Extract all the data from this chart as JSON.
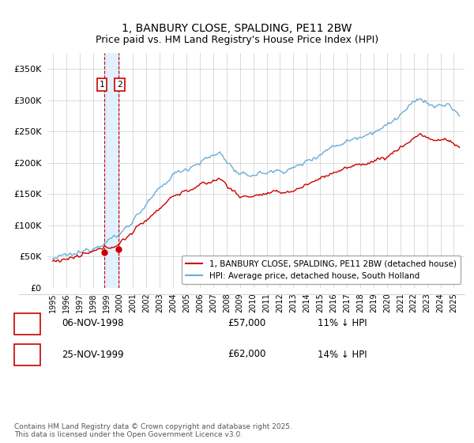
{
  "title": "1, BANBURY CLOSE, SPALDING, PE11 2BW",
  "subtitle": "Price paid vs. HM Land Registry's House Price Index (HPI)",
  "legend_line1": "1, BANBURY CLOSE, SPALDING, PE11 2BW (detached house)",
  "legend_line2": "HPI: Average price, detached house, South Holland",
  "annotation1_num": "1",
  "annotation1_date": "06-NOV-1998",
  "annotation1_price": "£57,000",
  "annotation1_hpi": "11% ↓ HPI",
  "annotation2_num": "2",
  "annotation2_date": "25-NOV-1999",
  "annotation2_price": "£62,000",
  "annotation2_hpi": "14% ↓ HPI",
  "footnote": "Contains HM Land Registry data © Crown copyright and database right 2025.\nThis data is licensed under the Open Government Licence v3.0.",
  "sale1_year": 1998.84,
  "sale1_price": 57000,
  "sale2_year": 1999.9,
  "sale2_price": 62000,
  "hpi_color": "#6baed6",
  "price_color": "#cc0000",
  "sale_dot_color": "#cc0000",
  "vline_color": "#cc0000",
  "shade_color": "#ddeeff",
  "ylim_min": 0,
  "ylim_max": 375000,
  "background_color": "#ffffff",
  "grid_color": "#cccccc"
}
